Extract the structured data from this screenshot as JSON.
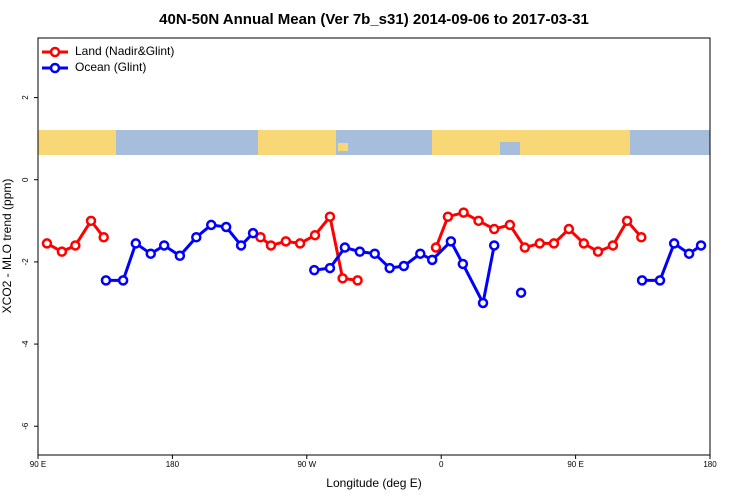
{
  "chart_data": {
    "type": "line",
    "title": "40N-50N Annual Mean (Ver 7b_s31)   2014-09-06 to 2017-03-31",
    "x_label": "Longitude (deg E)",
    "y_label": "XCO2 - MLO trend (ppm)",
    "xlim": [
      90,
      540
    ],
    "ylim": [
      -6.7,
      3.45
    ],
    "xticks": [
      {
        "value": 90,
        "label": "90 E"
      },
      180,
      {
        "value": 270,
        "label": "90 W"
      },
      {
        "value": 360,
        "label": "0"
      },
      {
        "value": 450,
        "label": "90 E"
      },
      {
        "value": 540,
        "label": "180"
      }
    ],
    "yticks": [
      -6,
      -4,
      -2,
      0,
      2
    ],
    "legend": "top-left",
    "series": [
      {
        "name": "Land (Nadir&Glint)",
        "color": "#ff0000",
        "x": [
          96,
          106,
          115,
          125.5,
          134,
          null,
          239,
          246,
          256,
          265.5,
          275.5,
          285.5,
          294,
          304,
          null,
          356.5,
          364.5,
          375,
          385,
          395.5,
          406,
          416,
          426,
          435.5,
          445.5,
          455.5,
          465,
          475,
          484.5,
          494
        ],
        "values": [
          -1.55,
          -1.75,
          -1.6,
          -1.0,
          -1.4,
          null,
          -1.4,
          -1.6,
          -1.5,
          -1.55,
          -1.35,
          -0.9,
          -2.4,
          -2.45,
          null,
          -1.65,
          -0.9,
          -0.8,
          -1.0,
          -1.2,
          -1.1,
          -1.65,
          -1.55,
          -1.55,
          -1.2,
          -1.55,
          -1.75,
          -1.6,
          -1.0,
          -1.4
        ]
      },
      {
        "name": "Ocean (Glint)",
        "color": "#0000ff",
        "x": [
          135.5,
          147,
          155.5,
          165.5,
          174.5,
          185,
          196,
          206,
          216,
          226,
          234,
          null,
          275,
          285.5,
          295.5,
          305.5,
          315.5,
          325.5,
          335,
          346,
          354,
          366.5,
          374.5,
          388,
          395.5,
          null,
          413.5,
          null,
          494.5,
          506.5,
          516,
          526,
          534
        ],
        "values": [
          -2.45,
          -2.45,
          -1.55,
          -1.8,
          -1.6,
          -1.85,
          -1.4,
          -1.1,
          -1.15,
          -1.6,
          -1.3,
          null,
          -2.2,
          -2.15,
          -1.65,
          -1.75,
          -1.8,
          -2.15,
          -2.1,
          -1.8,
          -1.95,
          -1.5,
          -2.05,
          -3.0,
          -1.6,
          null,
          -2.75,
          null,
          -2.45,
          -2.45,
          -1.55,
          -1.8,
          -1.6
        ]
      }
    ]
  }
}
